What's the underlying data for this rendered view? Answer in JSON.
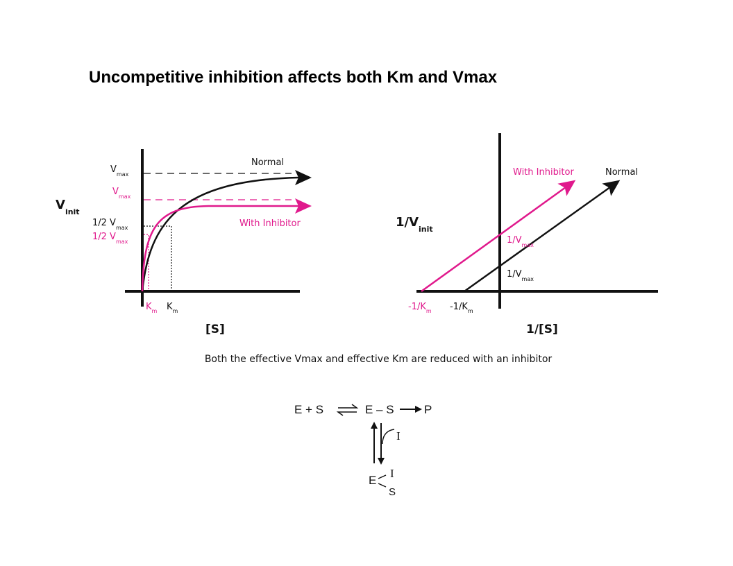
{
  "title": "Uncompetitive inhibition affects both Km and Vmax",
  "left_plot": {
    "y_label": {
      "main": "V",
      "sub": "init"
    },
    "x_label": "[S]",
    "normal_label": "Normal",
    "inhibitor_label": "With Inhibitor",
    "vmax_labels": [
      {
        "main": "V",
        "sub": "max"
      },
      {
        "main": "V",
        "sub": "max"
      }
    ],
    "half_vmax_labels": [
      {
        "main": "1/2 V",
        "sub": "max"
      },
      {
        "main": "1/2 V",
        "sub": "max"
      }
    ],
    "km_labels": [
      {
        "main": "K",
        "sub": "m"
      },
      {
        "main": "K",
        "sub": "m"
      }
    ]
  },
  "right_plot": {
    "y_label": {
      "main": "1/V",
      "sub": "init"
    },
    "x_label": "1/[S]",
    "normal_label": "Normal",
    "inhibitor_label": "With Inhibitor",
    "intercept_labels": [
      {
        "main": "1/V",
        "sub": "max"
      },
      {
        "main": "1/V",
        "sub": "max"
      }
    ],
    "x_intercept_labels": [
      {
        "main": "-1/K",
        "sub": "m"
      },
      {
        "main": "-1/K",
        "sub": "m"
      }
    ]
  },
  "caption": "Both the effective Vmax and effective Km are reduced with an inhibitor",
  "scheme": {
    "reactants": "E + S",
    "complex": "E – S",
    "product": "P",
    "inhibitor": "I",
    "ternary": {
      "enzyme": "E",
      "inhibitor": "I",
      "substrate": "S"
    }
  }
}
